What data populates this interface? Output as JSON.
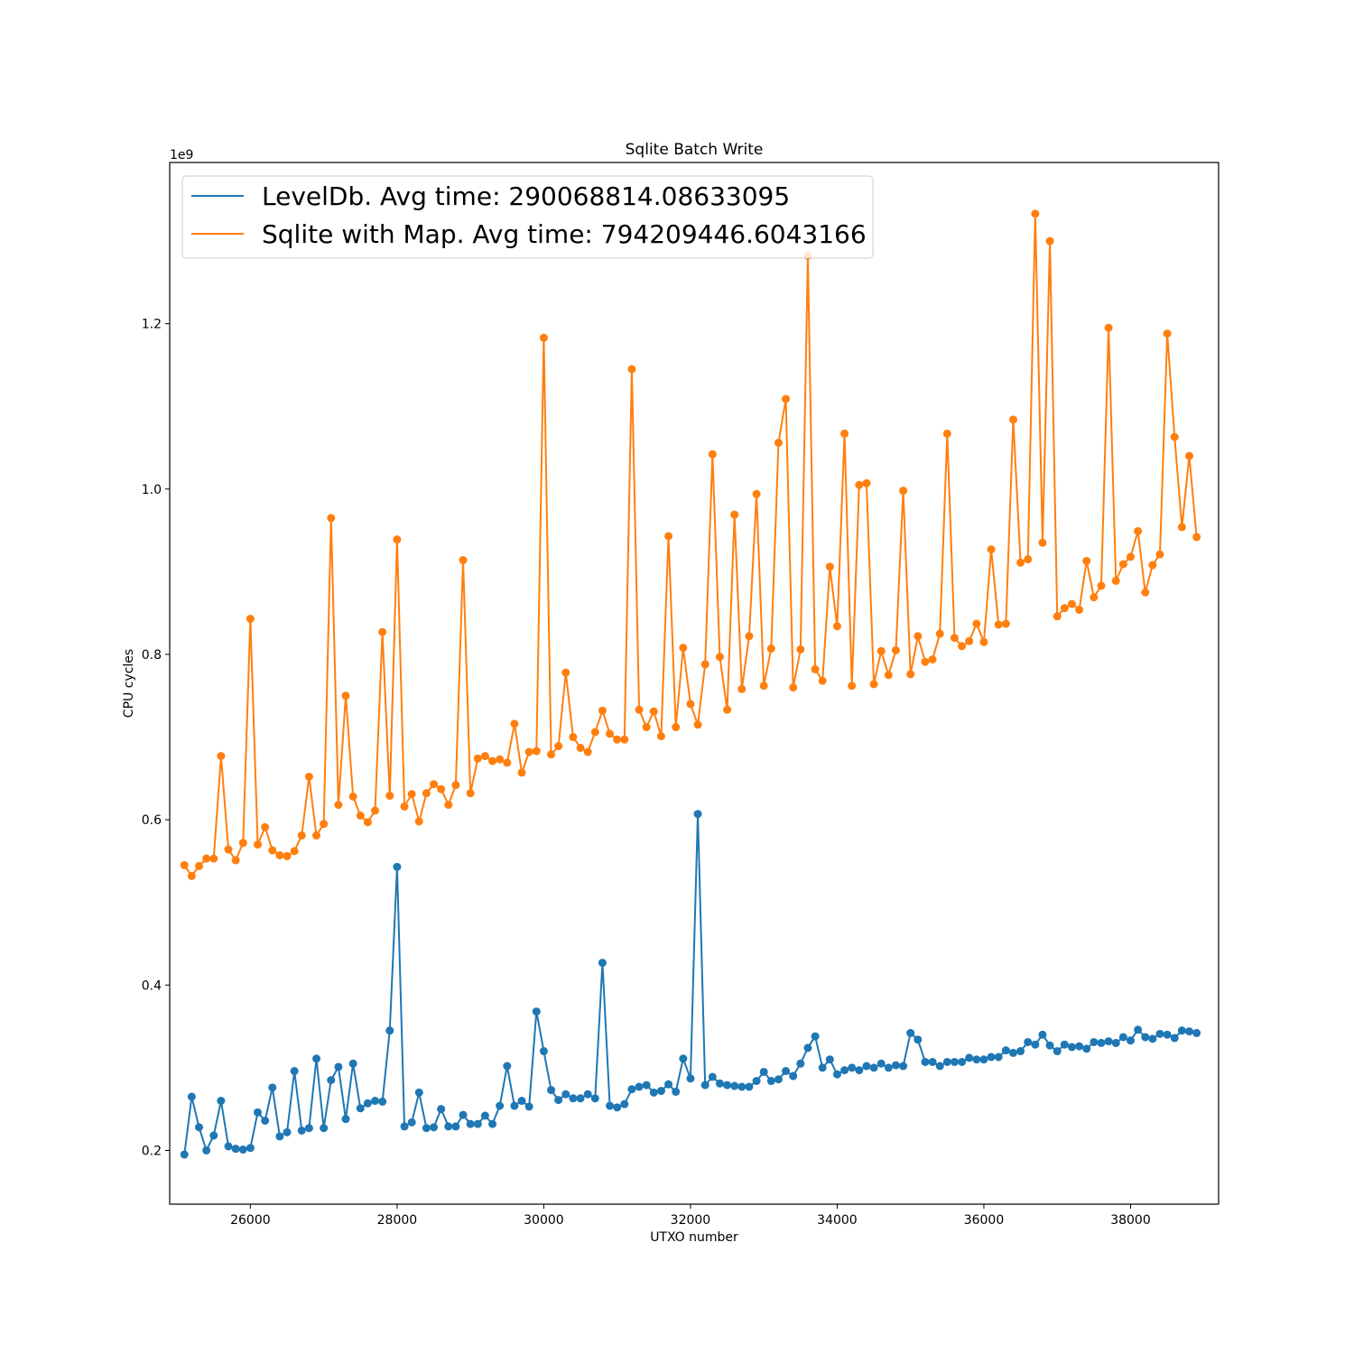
{
  "chart_data": {
    "type": "line",
    "title": "Sqlite Batch Write",
    "xlabel": "UTXO number",
    "ylabel": "CPU cycles",
    "y_offset_label": "1e9",
    "xlim": [
      24900,
      39200
    ],
    "ylim": [
      0.135,
      1.395
    ],
    "x_ticks": [
      26000,
      28000,
      30000,
      32000,
      34000,
      36000,
      38000
    ],
    "x_tick_labels": [
      "26000",
      "28000",
      "30000",
      "32000",
      "34000",
      "36000",
      "38000"
    ],
    "y_ticks": [
      0.2,
      0.4,
      0.6,
      0.8,
      1.0,
      1.2
    ],
    "y_tick_labels": [
      "0.2",
      "0.4",
      "0.6",
      "0.8",
      "1.0",
      "1.2"
    ],
    "grid": false,
    "legend_position": "top-left",
    "x_start": 25100,
    "x_step": 100,
    "series": [
      {
        "name": "LevelDb. Avg time: 290068814.08633095",
        "color": "#1f77b4",
        "marker": "circle",
        "values": [
          0.195,
          0.265,
          0.228,
          0.2,
          0.218,
          0.26,
          0.205,
          0.202,
          0.201,
          0.203,
          0.246,
          0.236,
          0.276,
          0.217,
          0.222,
          0.296,
          0.224,
          0.227,
          0.311,
          0.227,
          0.285,
          0.301,
          0.238,
          0.305,
          0.251,
          0.257,
          0.26,
          0.259,
          0.345,
          0.543,
          0.229,
          0.234,
          0.27,
          0.227,
          0.228,
          0.25,
          0.229,
          0.229,
          0.243,
          0.232,
          0.232,
          0.242,
          0.232,
          0.254,
          0.302,
          0.254,
          0.26,
          0.253,
          0.368,
          0.32,
          0.273,
          0.261,
          0.268,
          0.263,
          0.263,
          0.268,
          0.263,
          0.427,
          0.254,
          0.252,
          0.256,
          0.274,
          0.277,
          0.279,
          0.27,
          0.272,
          0.28,
          0.271,
          0.311,
          0.287,
          0.607,
          0.279,
          0.289,
          0.281,
          0.279,
          0.278,
          0.277,
          0.277,
          0.284,
          0.295,
          0.284,
          0.286,
          0.296,
          0.29,
          0.305,
          0.324,
          0.338,
          0.3,
          0.31,
          0.292,
          0.297,
          0.3,
          0.297,
          0.302,
          0.3,
          0.305,
          0.3,
          0.303,
          0.302,
          0.342,
          0.334,
          0.307,
          0.307,
          0.302,
          0.307,
          0.307,
          0.307,
          0.312,
          0.31,
          0.31,
          0.313,
          0.313,
          0.321,
          0.318,
          0.32,
          0.331,
          0.328,
          0.34,
          0.327,
          0.32,
          0.328,
          0.325,
          0.326,
          0.323,
          0.331,
          0.33,
          0.332,
          0.33,
          0.337,
          0.333,
          0.346,
          0.337,
          0.335,
          0.341,
          0.34,
          0.336,
          0.345,
          0.344,
          0.342
        ]
      },
      {
        "name": "Sqlite with Map. Avg time: 794209446.6043166",
        "color": "#ff7f0e",
        "marker": "circle",
        "values": [
          0.545,
          0.532,
          0.544,
          0.553,
          0.553,
          0.677,
          0.564,
          0.551,
          0.572,
          0.843,
          0.57,
          0.591,
          0.563,
          0.557,
          0.556,
          0.562,
          0.581,
          0.652,
          0.581,
          0.595,
          0.965,
          0.618,
          0.75,
          0.628,
          0.605,
          0.597,
          0.611,
          0.827,
          0.629,
          0.939,
          0.616,
          0.631,
          0.598,
          0.632,
          0.643,
          0.637,
          0.618,
          0.642,
          0.914,
          0.632,
          0.674,
          0.677,
          0.671,
          0.673,
          0.669,
          0.716,
          0.657,
          0.682,
          0.683,
          1.183,
          0.679,
          0.689,
          0.778,
          0.7,
          0.687,
          0.682,
          0.706,
          0.732,
          0.704,
          0.697,
          0.697,
          1.145,
          0.733,
          0.712,
          0.731,
          0.701,
          0.943,
          0.712,
          0.808,
          0.74,
          0.715,
          0.788,
          1.042,
          0.797,
          0.733,
          0.969,
          0.758,
          0.822,
          0.994,
          0.762,
          0.807,
          1.056,
          1.109,
          0.76,
          0.806,
          1.282,
          0.782,
          0.768,
          0.906,
          0.834,
          1.067,
          0.762,
          1.005,
          1.007,
          0.764,
          0.804,
          0.775,
          0.805,
          0.998,
          0.776,
          0.822,
          0.791,
          0.794,
          0.825,
          1.067,
          0.82,
          0.81,
          0.816,
          0.837,
          0.815,
          0.927,
          0.836,
          0.837,
          1.084,
          0.911,
          0.915,
          1.333,
          0.935,
          1.3,
          0.846,
          0.856,
          0.861,
          0.854,
          0.913,
          0.869,
          0.883,
          1.195,
          0.889,
          0.909,
          0.918,
          0.949,
          0.875,
          0.908,
          0.921,
          1.188,
          1.063,
          0.954,
          1.04,
          0.942
        ]
      }
    ]
  }
}
